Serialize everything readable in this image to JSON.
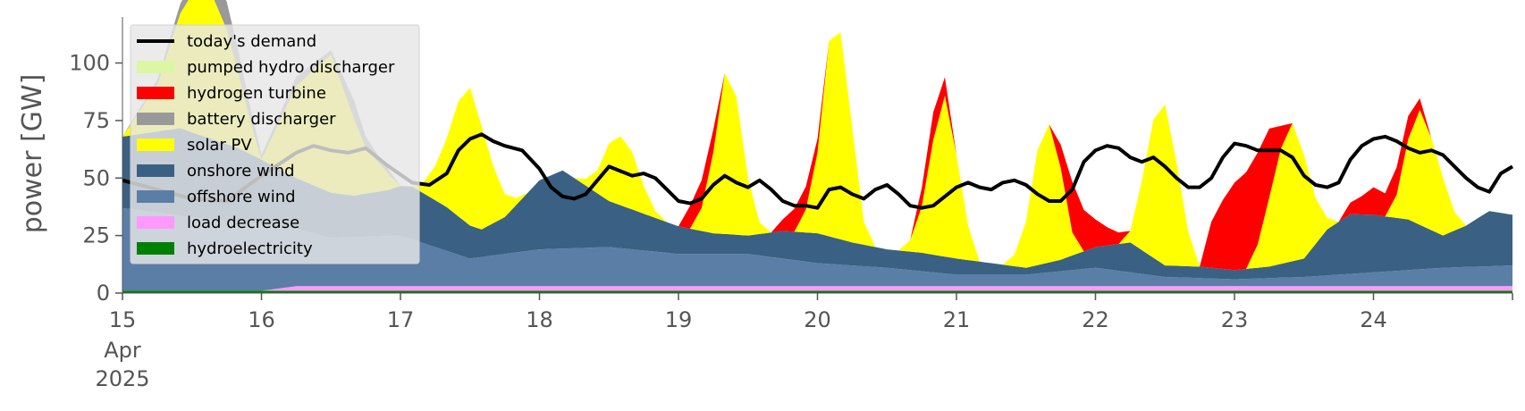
{
  "chart_data": {
    "type": "area",
    "ylabel": "power [GW]",
    "ylim": [
      0,
      120
    ],
    "yticks": [
      0,
      25,
      50,
      75,
      100
    ],
    "xlim": [
      0,
      240
    ],
    "xticks": [
      {
        "x": 0,
        "label": "15"
      },
      {
        "x": 24,
        "label": "16"
      },
      {
        "x": 48,
        "label": "17"
      },
      {
        "x": 72,
        "label": "18"
      },
      {
        "x": 96,
        "label": "19"
      },
      {
        "x": 120,
        "label": "20"
      },
      {
        "x": 144,
        "label": "21"
      },
      {
        "x": 168,
        "label": "22"
      },
      {
        "x": 192,
        "label": "23"
      },
      {
        "x": 216,
        "label": "24"
      }
    ],
    "x_sublabels": [
      "Apr",
      "2025"
    ],
    "legend_position": "upper-left",
    "demand": {
      "name": "today's demand",
      "color": "#000000",
      "x": [
        0,
        6,
        12,
        18,
        24,
        30,
        33,
        36,
        39,
        42,
        46,
        50,
        53,
        56,
        58,
        60,
        62,
        64,
        66,
        69,
        72,
        74,
        76,
        78,
        80,
        82,
        84,
        86,
        88,
        90,
        92,
        94,
        96,
        98,
        100,
        102,
        104,
        106,
        108,
        110,
        112,
        114,
        116,
        118,
        120,
        122,
        124,
        126,
        128,
        130,
        132,
        134,
        136,
        138,
        140,
        142,
        144,
        146,
        148,
        150,
        152,
        154,
        156,
        158,
        160,
        162,
        164,
        166,
        168,
        170,
        172,
        174,
        176,
        178,
        180,
        182,
        184,
        186,
        188,
        190,
        192,
        194,
        196,
        198,
        200,
        202,
        204,
        206,
        208,
        210,
        212,
        214,
        216,
        218,
        220,
        222,
        224,
        226,
        228,
        230,
        232,
        234,
        236,
        238,
        240
      ],
      "y": [
        49,
        45,
        41,
        40,
        51,
        61,
        64,
        62,
        61,
        63,
        55,
        48,
        47,
        52,
        62,
        67,
        69,
        66,
        64,
        62,
        54,
        46,
        42,
        41,
        43,
        49,
        55,
        53,
        51,
        52,
        50,
        45,
        40,
        39,
        41,
        47,
        51,
        48,
        46,
        49,
        45,
        40,
        38,
        38,
        37,
        45,
        46,
        43,
        41,
        45,
        47,
        43,
        38,
        37,
        38,
        42,
        46,
        48,
        46,
        45,
        48,
        49,
        47,
        43,
        40,
        40,
        45,
        57,
        62,
        64,
        63,
        59,
        57,
        59,
        55,
        50,
        46,
        46,
        50,
        59,
        65,
        64,
        62,
        62,
        62,
        59,
        51,
        47,
        46,
        48,
        58,
        64,
        67,
        68,
        66,
        63,
        61,
        62,
        60,
        55,
        50,
        46,
        44,
        52,
        55
      ],
      "pad_end": 48
    },
    "series": [
      {
        "name": "hydroelectricity",
        "color": "#008000",
        "x": [
          0,
          240
        ],
        "values": [
          1,
          1
        ]
      },
      {
        "name": "load decrease",
        "color": "#ff99ff",
        "x": [
          0,
          24,
          30,
          36,
          42,
          48,
          240
        ],
        "values": [
          0,
          0,
          2,
          2,
          2,
          2,
          2
        ]
      },
      {
        "name": "offshore wind",
        "color": "#5b7ea7",
        "x": [
          0,
          12,
          24,
          36,
          48,
          60,
          72,
          84,
          96,
          108,
          120,
          132,
          144,
          156,
          168,
          180,
          192,
          204,
          216,
          228,
          240
        ],
        "values": [
          36,
          32,
          29,
          21,
          22,
          12,
          16,
          17,
          14,
          14,
          10,
          8,
          5,
          5,
          8,
          4,
          3,
          4,
          6,
          8,
          9
        ]
      },
      {
        "name": "onshore wind",
        "color": "#3a6183",
        "x": [
          0,
          10,
          20,
          30,
          40,
          46,
          50,
          56,
          62,
          66,
          72,
          76,
          80,
          84,
          90,
          96,
          102,
          108,
          114,
          120,
          126,
          132,
          138,
          144,
          150,
          156,
          162,
          168,
          174,
          180,
          186,
          192,
          198,
          204,
          208,
          212,
          216,
          222,
          228,
          232,
          236,
          240
        ],
        "values": [
          31,
          38,
          32,
          22,
          18,
          20,
          23,
          19,
          12,
          16,
          30,
          34,
          27,
          20,
          16,
          12,
          9,
          8,
          12,
          13,
          10,
          8,
          8,
          7,
          5,
          3,
          5,
          9,
          13,
          5,
          5,
          4,
          5,
          8,
          20,
          26,
          25,
          22,
          14,
          18,
          24,
          22
        ]
      },
      {
        "name": "solar PV",
        "color": "#ffff00",
        "x": [
          0,
          6,
          10,
          14,
          18,
          22,
          24,
          30,
          36,
          42,
          48,
          50,
          52,
          54,
          56,
          58,
          60,
          62,
          64,
          66,
          68,
          70,
          72,
          74,
          76,
          78,
          80,
          82,
          84,
          86,
          88,
          90,
          92,
          94,
          96,
          98,
          100,
          102,
          104,
          106,
          108,
          110,
          112,
          114,
          116,
          118,
          120,
          122,
          124,
          126,
          128,
          130,
          132,
          134,
          136,
          138,
          140,
          142,
          144,
          146,
          148,
          150,
          152,
          154,
          156,
          158,
          160,
          162,
          164,
          166,
          168,
          170,
          172,
          174,
          176,
          178,
          180,
          182,
          184,
          186,
          188,
          190,
          192,
          194,
          196,
          198,
          200,
          202,
          204,
          206,
          208,
          210,
          212,
          214,
          216,
          218,
          220,
          222,
          224,
          226,
          228,
          230,
          232,
          234,
          236,
          238,
          240
        ],
        "values": [
          0,
          20,
          50,
          70,
          50,
          15,
          0,
          40,
          60,
          20,
          0,
          0,
          5,
          15,
          30,
          50,
          60,
          45,
          25,
          10,
          3,
          0,
          0,
          0,
          0,
          0,
          3,
          10,
          25,
          30,
          25,
          12,
          3,
          0,
          0,
          0,
          10,
          35,
          70,
          60,
          25,
          5,
          0,
          0,
          0,
          10,
          35,
          85,
          90,
          50,
          10,
          0,
          0,
          0,
          5,
          20,
          50,
          70,
          45,
          15,
          0,
          0,
          0,
          5,
          20,
          50,
          60,
          40,
          10,
          0,
          0,
          0,
          0,
          5,
          30,
          60,
          70,
          45,
          15,
          0,
          0,
          0,
          0,
          0,
          10,
          30,
          50,
          60,
          45,
          20,
          5,
          0,
          0,
          0,
          0,
          0,
          10,
          35,
          50,
          40,
          25,
          8,
          0,
          0,
          0,
          0,
          0
        ]
      },
      {
        "name": "battery discharger",
        "color": "#999999",
        "x": [
          0,
          12,
          18,
          20,
          22,
          24,
          30,
          36,
          40,
          42,
          44,
          46,
          48,
          240
        ],
        "values": [
          0,
          5,
          12,
          10,
          6,
          2,
          4,
          2,
          8,
          5,
          3,
          2,
          0,
          0
        ]
      },
      {
        "name": "hydrogen turbine",
        "color": "#ff0000",
        "x": [
          0,
          60,
          62,
          64,
          66,
          68,
          70,
          72,
          96,
          98,
          100,
          102,
          104,
          106,
          108,
          110,
          112,
          114,
          116,
          118,
          120,
          122,
          124,
          126,
          128,
          130,
          132,
          134,
          136,
          138,
          140,
          142,
          144,
          146,
          148,
          150,
          152,
          154,
          156,
          158,
          160,
          162,
          164,
          166,
          168,
          170,
          172,
          174,
          176,
          178,
          180,
          182,
          184,
          186,
          188,
          190,
          192,
          194,
          196,
          198,
          200,
          202,
          204,
          206,
          208,
          210,
          212,
          214,
          216,
          218,
          220,
          222,
          224,
          226,
          228,
          230,
          232,
          234,
          236,
          238,
          240
        ],
        "values": [
          0,
          0,
          0,
          0,
          0,
          0,
          0,
          0,
          0,
          10,
          12,
          10,
          0,
          0,
          0,
          0,
          0,
          5,
          10,
          10,
          6,
          0,
          0,
          0,
          0,
          0,
          0,
          0,
          0,
          8,
          12,
          8,
          0,
          0,
          0,
          0,
          0,
          0,
          0,
          0,
          0,
          10,
          22,
          18,
          12,
          8,
          5,
          0,
          0,
          0,
          0,
          0,
          0,
          0,
          20,
          30,
          38,
          42,
          40,
          30,
          10,
          0,
          0,
          0,
          0,
          0,
          5,
          8,
          12,
          10,
          12,
          10,
          5,
          0,
          0,
          0,
          0,
          0,
          0,
          0,
          0
        ]
      },
      {
        "name": "pumped hydro discharger",
        "color": "#dcf7a3",
        "x": [
          0,
          240
        ],
        "values": [
          0,
          0
        ]
      }
    ]
  }
}
